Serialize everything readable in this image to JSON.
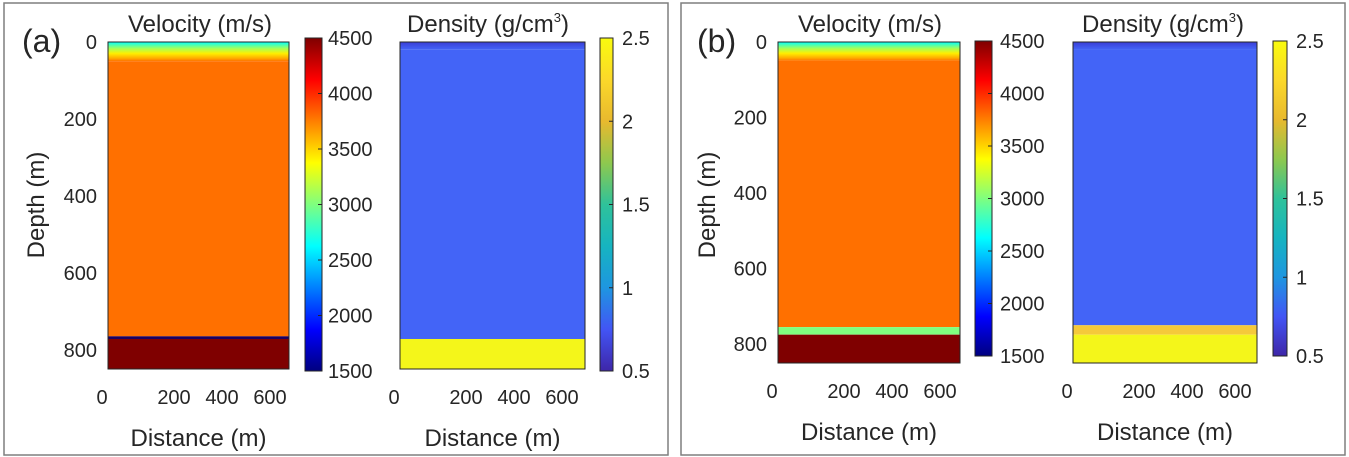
{
  "figure": {
    "panels": [
      {
        "label": "(a)",
        "ylabel": "Depth (m)",
        "velocity_title": "Velocity (m/s)",
        "density_title_base": "Density (g/cm",
        "density_title_sup": "3",
        "density_title_end": ")"
      },
      {
        "label": "(b)",
        "ylabel": "Depth (m)",
        "velocity_title": "Velocity (m/s)",
        "density_title_base": "Density (g/cm",
        "density_title_sup": "3",
        "density_title_end": ")"
      }
    ]
  },
  "colors": {
    "jet": [
      "#00007f",
      "#0000ff",
      "#007fff",
      "#00ffff",
      "#7fff7f",
      "#ffff00",
      "#ff7f00",
      "#ff0000",
      "#7f0000"
    ],
    "parula": [
      "#3e26a8",
      "#4255f5",
      "#1e96e0",
      "#16b4c0",
      "#2fc29a",
      "#8ec84e",
      "#e8b92e",
      "#fbd82a",
      "#f9fb0e"
    ],
    "velocity_fill": "#ff7000",
    "velocity_bottom": "#7f0000",
    "velocity_interface_a": "#1a0060",
    "velocity_interface_b": "#7fff7f",
    "density_fill": "#4364f7",
    "density_bottom": "#f4f61a",
    "density_interface_b": "#f5c93a"
  },
  "chart_data": [
    {
      "type": "heatmap",
      "panel": "(a)",
      "title": "Velocity (m/s)",
      "xlabel": "Distance (m)",
      "ylabel": "Depth (m)",
      "x_ticks": [
        0,
        200,
        400,
        600
      ],
      "y_ticks": [
        0,
        200,
        400,
        600,
        800
      ],
      "xlim": [
        0,
        750
      ],
      "ylim": [
        850,
        0
      ],
      "colormap": "jet",
      "clim": [
        1500,
        4500
      ],
      "colorbar_ticks": [
        1500,
        2000,
        2500,
        3000,
        3500,
        4000,
        4500
      ],
      "layers": [
        {
          "top": 0,
          "bottom": 50,
          "value": "1500 to 3800 gradient"
        },
        {
          "top": 50,
          "bottom": 765,
          "value": 3800
        },
        {
          "top": 765,
          "bottom": 772,
          "value": 1500
        },
        {
          "top": 772,
          "bottom": 850,
          "value": 4500
        }
      ]
    },
    {
      "type": "heatmap",
      "panel": "(a)",
      "title": "Density (g/cm3)",
      "xlabel": "Distance (m)",
      "ylabel": "",
      "x_ticks": [
        0,
        200,
        400,
        600
      ],
      "xlim": [
        0,
        750
      ],
      "ylim": [
        850,
        0
      ],
      "colormap": "parula",
      "clim": [
        0.5,
        2.5
      ],
      "colorbar_ticks": [
        0.5,
        1,
        1.5,
        2,
        2.5
      ],
      "layers": [
        {
          "top": 0,
          "bottom": 20,
          "value": "0.7 to 1.0 gradient"
        },
        {
          "top": 20,
          "bottom": 772,
          "value": 1.0
        },
        {
          "top": 772,
          "bottom": 850,
          "value": 2.4
        }
      ]
    },
    {
      "type": "heatmap",
      "panel": "(b)",
      "title": "Velocity (m/s)",
      "xlabel": "Distance (m)",
      "ylabel": "Depth (m)",
      "x_ticks": [
        0,
        200,
        400,
        600
      ],
      "y_ticks": [
        0,
        200,
        400,
        600,
        800
      ],
      "xlim": [
        0,
        750
      ],
      "ylim": [
        850,
        0
      ],
      "colormap": "jet",
      "clim": [
        1500,
        4500
      ],
      "colorbar_ticks": [
        1500,
        2000,
        2500,
        3000,
        3500,
        4000,
        4500
      ],
      "layers": [
        {
          "top": 0,
          "bottom": 50,
          "value": "1500 to 3800 gradient"
        },
        {
          "top": 50,
          "bottom": 755,
          "value": 3800
        },
        {
          "top": 755,
          "bottom": 775,
          "value": 3000
        },
        {
          "top": 775,
          "bottom": 850,
          "value": 4500
        }
      ]
    },
    {
      "type": "heatmap",
      "panel": "(b)",
      "title": "Density (g/cm3)",
      "xlabel": "Distance (m)",
      "ylabel": "",
      "x_ticks": [
        0,
        200,
        400,
        600
      ],
      "xlim": [
        0,
        750
      ],
      "ylim": [
        850,
        0
      ],
      "colormap": "parula",
      "clim": [
        0.5,
        2.5
      ],
      "colorbar_ticks": [
        0.5,
        1,
        1.5,
        2,
        2.5
      ],
      "layers": [
        {
          "top": 0,
          "bottom": 20,
          "value": "0.7 to 1.0 gradient"
        },
        {
          "top": 20,
          "bottom": 750,
          "value": 1.0
        },
        {
          "top": 750,
          "bottom": 775,
          "value": 2.2
        },
        {
          "top": 775,
          "bottom": 850,
          "value": 2.4
        }
      ]
    }
  ]
}
